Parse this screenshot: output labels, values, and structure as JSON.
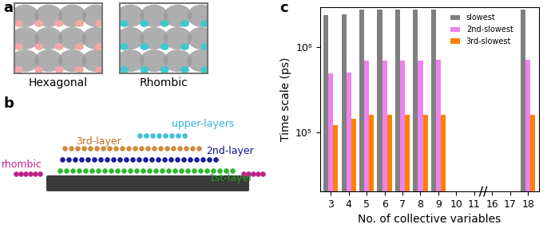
{
  "panels": {
    "a": {
      "label": "a",
      "texts": [
        "Hexagonal",
        "Rhombic"
      ]
    },
    "b": {
      "label": "b",
      "texts": [
        "upper-layers",
        "3rd-layer",
        "2nd-layer",
        "rhombic",
        "1st-layer"
      ]
    },
    "c": {
      "label": "c"
    }
  },
  "chart_data": {
    "type": "bar",
    "x_label": "No. of collective variables",
    "y_label": "Time scale (ps)",
    "categories": [
      "3",
      "4",
      "5",
      "6",
      "7",
      "8",
      "9",
      "10",
      "11",
      "16",
      "17",
      "18"
    ],
    "series": [
      {
        "name": "slowest",
        "color": "#808080",
        "values": [
          2400000,
          2450000,
          2800000,
          2800000,
          2800000,
          2800000,
          2800000,
          null,
          null,
          null,
          null,
          2800000
        ]
      },
      {
        "name": "2nd-slowest",
        "color": "#ee82ee",
        "values": [
          490000,
          500000,
          700000,
          700000,
          700000,
          700000,
          710000,
          null,
          null,
          null,
          null,
          710000
        ]
      },
      {
        "name": "3rd-slowest",
        "color": "#ff8000",
        "values": [
          120000,
          145000,
          160000,
          160000,
          160000,
          160000,
          160000,
          null,
          null,
          null,
          null,
          160000
        ]
      }
    ],
    "log": "y",
    "ylim": [
      20000,
      3000000
    ],
    "yticks": [
      {
        "value": 100000,
        "label": "10⁵"
      },
      {
        "value": 1000000,
        "label": "10⁶"
      }
    ],
    "legend": "upper right"
  }
}
